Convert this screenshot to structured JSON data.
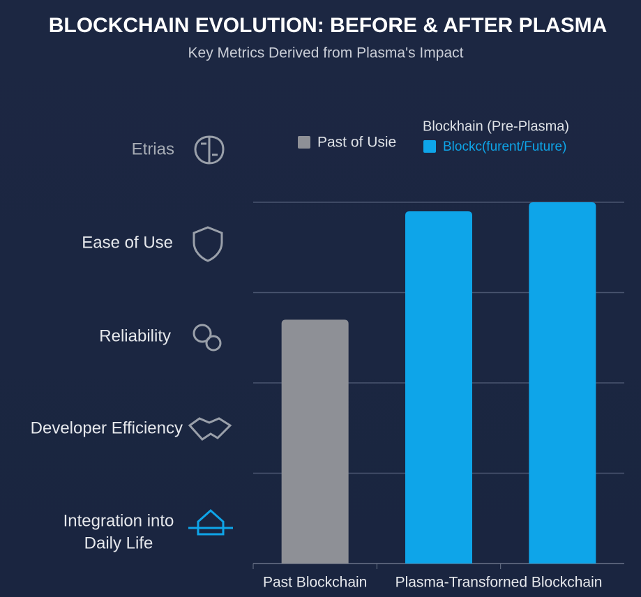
{
  "chart_data": {
    "type": "bar",
    "title": "BLOCKCHAIN EVOLUTION: BEFORE & AFTER PLASMA",
    "subtitle": "Key Metrics Derived from Plasma's Impact",
    "metrics": [
      [
        "Etrias"
      ],
      [
        "Ease of Use"
      ],
      [
        "Reliability"
      ],
      [
        "Developer Efficiency"
      ],
      [
        "Integration into",
        "Daily Life"
      ]
    ],
    "legend": [
      {
        "label": "Past of Usie",
        "color": "#8e9096"
      },
      {
        "label": "Blockc(furent/Future)",
        "color": "#0ea5e9"
      }
    ],
    "legend_note": "Blockhain (Pre-Plasma)",
    "categories": [
      "Past Blockchain",
      "Plasma-Transforned Blockchain",
      null
    ],
    "values": [
      2.7,
      3.9,
      4.0
    ],
    "colors": [
      "#8e9096",
      "#0ea5e9",
      "#0ea5e9"
    ],
    "ylim": [
      0,
      4.0
    ],
    "yticks": [
      1,
      2,
      3,
      4
    ],
    "grid": true
  }
}
